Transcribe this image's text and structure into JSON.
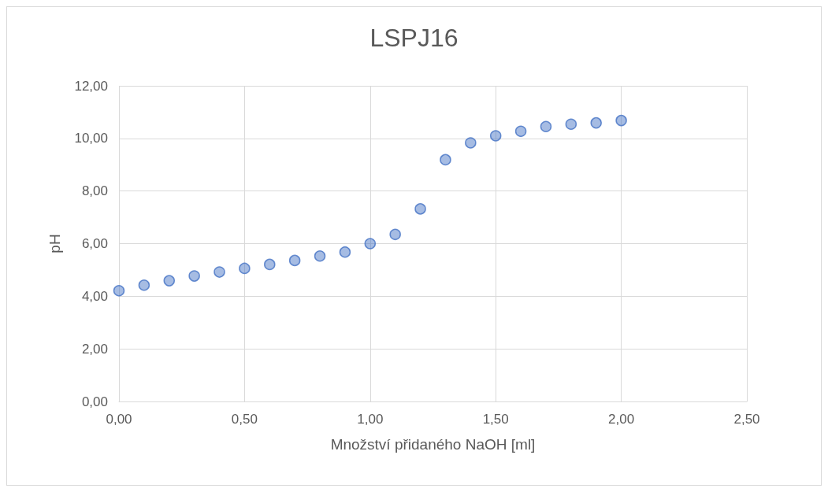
{
  "chart_data": {
    "type": "scatter",
    "title": "LSPJ16",
    "xlabel": "Množství přidaného NaOH [ml]",
    "ylabel": "pH",
    "x": [
      0,
      0.1,
      0.2,
      0.3,
      0.4,
      0.5,
      0.6,
      0.7,
      0.8,
      0.9,
      1.0,
      1.1,
      1.2,
      1.3,
      1.4,
      1.5,
      1.6,
      1.7,
      1.8,
      1.9,
      2.0
    ],
    "series": [
      {
        "color": "#4472c4",
        "values": [
          4.21,
          4.42,
          4.59,
          4.77,
          4.92,
          5.06,
          5.21,
          5.36,
          5.53,
          5.68,
          6.0,
          6.35,
          7.32,
          9.19,
          9.83,
          10.1,
          10.27,
          10.45,
          10.54,
          10.59,
          10.68
        ]
      }
    ],
    "xlim": [
      0,
      2.5
    ],
    "xticks": [
      {
        "value": 0,
        "label": "0,00"
      },
      {
        "value": 0.5,
        "label": "0,50"
      },
      {
        "value": 1,
        "label": "1,00"
      },
      {
        "value": 1.5,
        "label": "1,50"
      },
      {
        "value": 2,
        "label": "2,00"
      },
      {
        "value": 2.5,
        "label": "2,50"
      }
    ],
    "ylim": [
      0,
      12
    ],
    "yticks": [
      {
        "value": 0,
        "label": "0,00"
      },
      {
        "value": 2,
        "label": "2,00"
      },
      {
        "value": 4,
        "label": "4,00"
      },
      {
        "value": 6,
        "label": "6,00"
      },
      {
        "value": 8,
        "label": "8,00"
      },
      {
        "value": 10,
        "label": "10,00"
      },
      {
        "value": 12,
        "label": "12,00"
      }
    ],
    "grid": true,
    "marker": "circle"
  }
}
